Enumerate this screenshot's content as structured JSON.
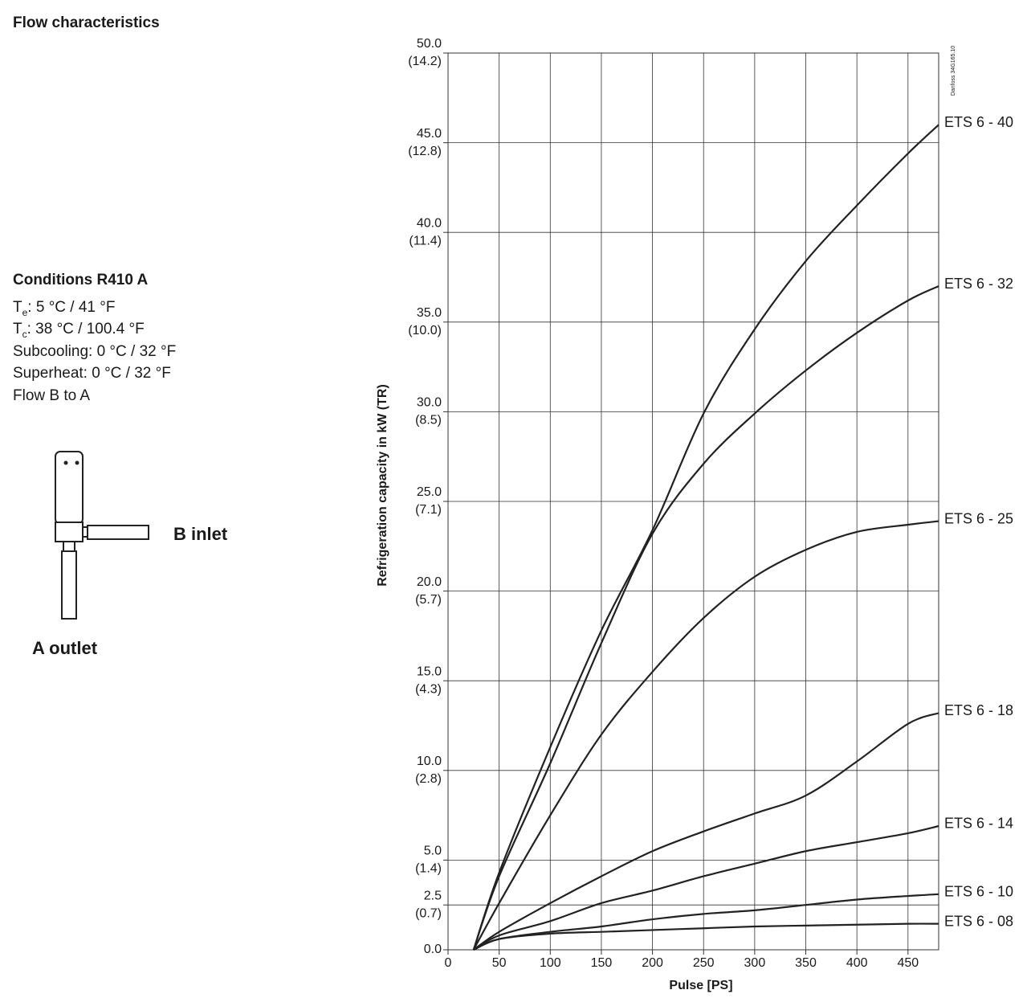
{
  "title": "Flow characteristics",
  "conditions": {
    "heading": "Conditions R410 A",
    "te": {
      "symbol": "T",
      "subscript": "e",
      "text": ": 5 °C / 41 °F"
    },
    "tc": {
      "symbol": "T",
      "subscript": "c",
      "text": ": 38 °C / 100.4 °F"
    },
    "lines": [
      "Subcooling: 0 °C / 32 °F",
      "Superheat: 0 °C / 32 °F",
      "Flow B to A"
    ]
  },
  "valve": {
    "inlet_label": "B inlet",
    "outlet_label": "A outlet"
  },
  "chart_data": {
    "type": "line",
    "x_label": "Pulse [PS]",
    "y_label": "Refrigeration capacity in kW (TR)",
    "annotation": "Danfoss 34G165.10",
    "xlim": [
      0,
      480
    ],
    "xticks": [
      0,
      50,
      100,
      150,
      200,
      250,
      300,
      350,
      400,
      450
    ],
    "ylim": [
      0,
      50
    ],
    "yticks": [
      {
        "value": 0,
        "label": "0.0"
      },
      2.5,
      {
        "value": 5,
        "label": "5.0"
      },
      {
        "value": 10,
        "label": "10.0"
      },
      {
        "value": 15,
        "label": "15.0"
      },
      {
        "value": 20,
        "label": "20.0"
      },
      {
        "value": 25,
        "label": "25.0"
      },
      {
        "value": 30,
        "label": "30.0"
      },
      {
        "value": 35,
        "label": "35.0"
      },
      {
        "value": 40,
        "label": "40.0"
      },
      {
        "value": 45,
        "label": "45.0"
      },
      {
        "value": 50,
        "label": "50.0"
      }
    ],
    "ytick_tr_labels": [
      null,
      "(0.7)",
      "(1.4)",
      "(2.8)",
      "(4.3)",
      "(5.7)",
      "(7.1)",
      "(8.5)",
      "(10.0)",
      "(11.4)",
      "(12.8)",
      "(14.2)"
    ],
    "grid": true,
    "x": [
      25,
      50,
      100,
      150,
      200,
      250,
      300,
      350,
      400,
      450,
      480
    ],
    "series": [
      {
        "name": "ETS 6 - 40",
        "color": "#222222",
        "values": [
          0,
          4.3,
          11.3,
          17.8,
          23.4,
          29.9,
          34.6,
          38.4,
          41.5,
          44.4,
          46.0
        ]
      },
      {
        "name": "ETS 6 - 32",
        "color": "#222222",
        "values": [
          0,
          4.1,
          10.4,
          17.1,
          23.2,
          27.1,
          29.9,
          32.3,
          34.4,
          36.2,
          37.0
        ]
      },
      {
        "name": "ETS 6 - 25",
        "color": "#222222",
        "values": [
          0,
          2.6,
          7.5,
          12.0,
          15.5,
          18.5,
          20.8,
          22.3,
          23.3,
          23.7,
          23.9
        ]
      },
      {
        "name": "ETS 6 - 18",
        "color": "#222222",
        "values": [
          0,
          1.0,
          2.6,
          4.1,
          5.5,
          6.6,
          7.6,
          8.6,
          10.5,
          12.6,
          13.2
        ]
      },
      {
        "name": "ETS 6 - 14",
        "color": "#222222",
        "values": [
          0,
          0.8,
          1.6,
          2.6,
          3.3,
          4.1,
          4.8,
          5.5,
          6.0,
          6.5,
          6.9
        ]
      },
      {
        "name": "ETS 6 - 10",
        "color": "#222222",
        "values": [
          0,
          0.6,
          1.0,
          1.3,
          1.7,
          2.0,
          2.2,
          2.5,
          2.8,
          3.0,
          3.1
        ]
      },
      {
        "name": "ETS 6 - 08",
        "color": "#222222",
        "values": [
          0,
          0.6,
          0.9,
          1.0,
          1.1,
          1.2,
          1.3,
          1.35,
          1.4,
          1.45,
          1.45
        ]
      }
    ]
  }
}
